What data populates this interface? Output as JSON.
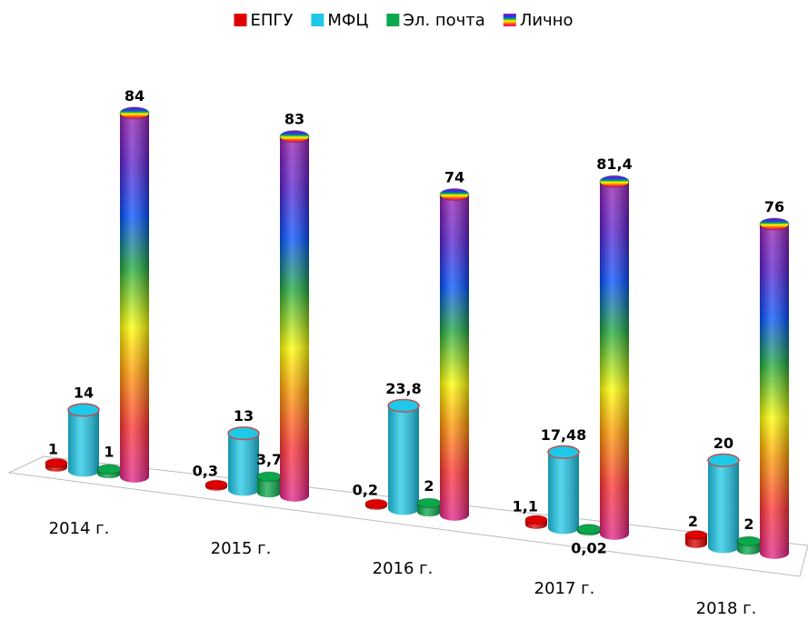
{
  "chart_data": {
    "type": "bar3d",
    "categories": [
      "2014 г.",
      "2015 г.",
      "2016 г.",
      "2017 г.",
      "2018 г."
    ],
    "series": [
      {
        "name": "ЕПГУ",
        "color": "#e00000",
        "values": [
          1,
          0.3,
          0.2,
          1.1,
          2
        ],
        "value_labels": [
          "1",
          "0,3",
          "0,2",
          "1,1",
          "2"
        ]
      },
      {
        "name": "МФЦ",
        "color": "#1ec8e8",
        "values": [
          14,
          13,
          23.8,
          17.48,
          20
        ],
        "value_labels": [
          "14",
          "13",
          "23,8",
          "17,48",
          "20"
        ]
      },
      {
        "name": "Эл. почта",
        "color": "#0aa84a",
        "values": [
          1,
          3.7,
          2,
          0.02,
          2
        ],
        "value_labels": [
          "1",
          "3,7",
          "2",
          "0,02",
          "2"
        ]
      },
      {
        "name": "Лично",
        "color": "#8a1fb0",
        "values": [
          84,
          83,
          74,
          81.4,
          76
        ],
        "value_labels": [
          "84",
          "83",
          "74",
          "81,4",
          "76"
        ]
      }
    ],
    "legend": "top"
  }
}
